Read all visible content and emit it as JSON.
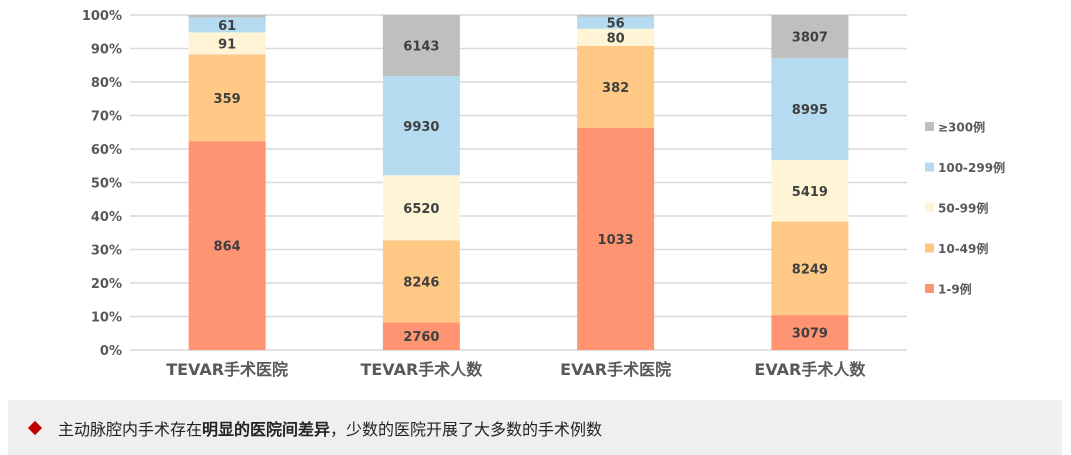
{
  "chart_data": {
    "type": "bar",
    "stacked": "percent",
    "categories": [
      "TEVAR手术医院",
      "TEVAR手术人数",
      "EVAR手术医院",
      "EVAR手术人数"
    ],
    "series": [
      {
        "name": "1-9例",
        "color": "#ff9473",
        "values": [
          864,
          2760,
          1033,
          3079
        ]
      },
      {
        "name": "10-49例",
        "color": "#ffc985",
        "values": [
          359,
          8246,
          382,
          8249
        ]
      },
      {
        "name": "50-99例",
        "color": "#fff5d6",
        "values": [
          91,
          6520,
          80,
          5419
        ]
      },
      {
        "name": "100-299例",
        "color": "#b4dbef",
        "values": [
          61,
          9930,
          56,
          8995
        ]
      },
      {
        "name": "≥300例",
        "color": "#bfbfbf",
        "values": [
          11,
          6143,
          8,
          3807
        ],
        "labels_shown": [
          false,
          true,
          false,
          true
        ]
      }
    ],
    "yticks": [
      "0%",
      "10%",
      "20%",
      "30%",
      "40%",
      "50%",
      "60%",
      "70%",
      "80%",
      "90%",
      "100%"
    ],
    "ylim": [
      0,
      100
    ],
    "grid": true,
    "legend": "right"
  },
  "banner": {
    "pre": "主动脉腔内手术存在",
    "bold": "明显的医院间差异",
    "post": "，少数的医院开展了大多数的手术例数"
  }
}
